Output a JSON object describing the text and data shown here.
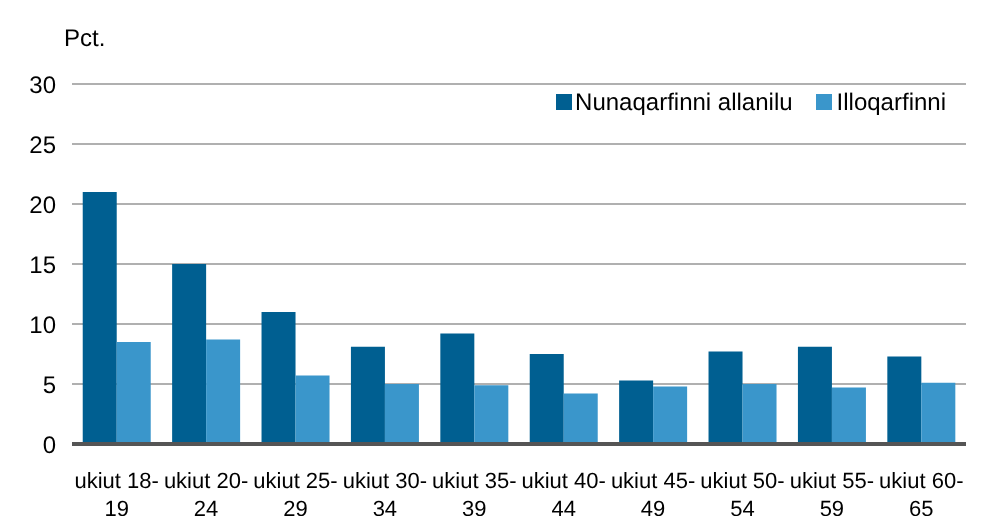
{
  "chart_data": {
    "type": "bar",
    "ylabel": "Pct.",
    "categories": [
      "ukiut 18-19",
      "ukiut 20-24",
      "ukiut 25-29",
      "ukiut 30-34",
      "ukiut 35-39",
      "ukiut 40-44",
      "ukiut 45-49",
      "ukiut 50-54",
      "ukiut 55-59",
      "ukiut 60-65"
    ],
    "series": [
      {
        "name": "Nunaqarfinni allanilu",
        "color": "#005f91",
        "values": [
          21,
          15,
          11,
          8.1,
          9.2,
          7.5,
          5.3,
          7.7,
          8.1,
          7.3
        ]
      },
      {
        "name": "Illoqarfinni",
        "color": "#3a96cb",
        "values": [
          8.5,
          8.7,
          5.7,
          5.0,
          4.9,
          4.2,
          4.8,
          5.0,
          4.7,
          5.1
        ]
      }
    ],
    "ylim": [
      0,
      30
    ],
    "yticks": [
      0,
      5,
      10,
      15,
      20,
      25,
      30
    ],
    "grid": "y",
    "legend": "top right"
  }
}
